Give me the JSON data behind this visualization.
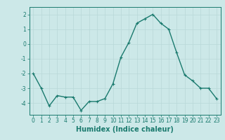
{
  "x": [
    0,
    1,
    2,
    3,
    4,
    5,
    6,
    7,
    8,
    9,
    10,
    11,
    12,
    13,
    14,
    15,
    16,
    17,
    18,
    19,
    20,
    21,
    22,
    23
  ],
  "y": [
    -2.0,
    -3.0,
    -4.2,
    -3.5,
    -3.6,
    -3.6,
    -4.5,
    -3.9,
    -3.9,
    -3.7,
    -2.7,
    -0.9,
    0.1,
    1.4,
    1.7,
    2.0,
    1.4,
    1.0,
    -0.6,
    -2.1,
    -2.5,
    -3.0,
    -3.0,
    -3.7
  ],
  "xlabel": "Humidex (Indice chaleur)",
  "xlim": [
    -0.5,
    23.5
  ],
  "ylim": [
    -4.8,
    2.5
  ],
  "yticks": [
    -4,
    -3,
    -2,
    -1,
    0,
    1,
    2
  ],
  "xticks": [
    0,
    1,
    2,
    3,
    4,
    5,
    6,
    7,
    8,
    9,
    10,
    11,
    12,
    13,
    14,
    15,
    16,
    17,
    18,
    19,
    20,
    21,
    22,
    23
  ],
  "line_color": "#1a7a6e",
  "marker": "+",
  "bg_color": "#cce8e8",
  "grid_color": "#b8d8d8",
  "axis_color": "#1a7a6e",
  "tick_label_color": "#1a7a6e",
  "xlabel_color": "#1a7a6e",
  "tick_fontsize": 5.5,
  "xlabel_fontsize": 7.0,
  "linewidth": 1.0,
  "markersize": 3.5
}
